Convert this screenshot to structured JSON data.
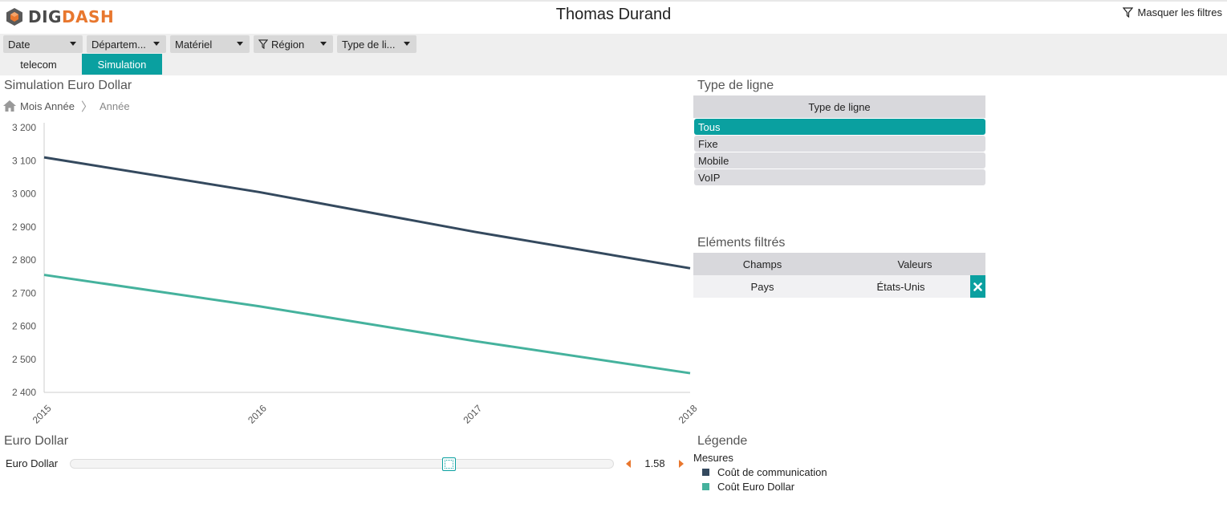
{
  "app": {
    "logo_dig": "DIG",
    "logo_dash": "DASH",
    "user_name": "Thomas Durand",
    "hide_filters": "Masquer les filtres"
  },
  "filters": [
    {
      "label": "Date"
    },
    {
      "label": "Départem..."
    },
    {
      "label": "Matériel"
    },
    {
      "label": "Région"
    },
    {
      "label": "Type de li..."
    }
  ],
  "tabs": [
    {
      "label": "telecom",
      "active": false
    },
    {
      "label": "Simulation",
      "active": true
    }
  ],
  "chart_panel": {
    "title": "Simulation Euro Dollar",
    "breadcrumb": [
      "Mois Année",
      "Année"
    ]
  },
  "chart_data": {
    "type": "line",
    "x": [
      "2015",
      "2016",
      "2017",
      "2018"
    ],
    "ylim": [
      2400,
      3200
    ],
    "yticks": [
      "3 200",
      "3 100",
      "3 000",
      "2 900",
      "2 800",
      "2 700",
      "2 600",
      "2 500",
      "2 400"
    ],
    "ytick_values": [
      3200,
      3100,
      3000,
      2900,
      2800,
      2700,
      2600,
      2500,
      2400
    ],
    "series": [
      {
        "name": "Coût de communication",
        "color": "#34495e",
        "values": [
          3110,
          3005,
          2885,
          2775
        ]
      },
      {
        "name": "Coût Euro Dollar",
        "color": "#45b29d",
        "values": [
          2755,
          2660,
          2555,
          2458
        ]
      }
    ],
    "grid": false
  },
  "line_type_panel": {
    "title": "Type de ligne",
    "header": "Type de ligne",
    "items": [
      {
        "label": "Tous",
        "selected": true
      },
      {
        "label": "Fixe",
        "selected": false
      },
      {
        "label": "Mobile",
        "selected": false
      },
      {
        "label": "VoIP",
        "selected": false
      }
    ]
  },
  "filtered_panel": {
    "title": "Eléments filtrés",
    "col_fields": "Champs",
    "col_values": "Valeurs",
    "rows": [
      {
        "field": "Pays",
        "value": "États-Unis"
      }
    ]
  },
  "slider_panel": {
    "title": "Euro Dollar",
    "label": "Euro Dollar",
    "value": "1.58",
    "level": 0.7
  },
  "legend_panel": {
    "title": "Légende",
    "subtitle": "Mesures",
    "items": [
      {
        "label": "Coût de communication",
        "color": "#34495e"
      },
      {
        "label": "Coût Euro Dollar",
        "color": "#45b29d"
      }
    ]
  },
  "colors": {
    "accent": "#0aa0a0",
    "brand_orange": "#e8772e"
  }
}
